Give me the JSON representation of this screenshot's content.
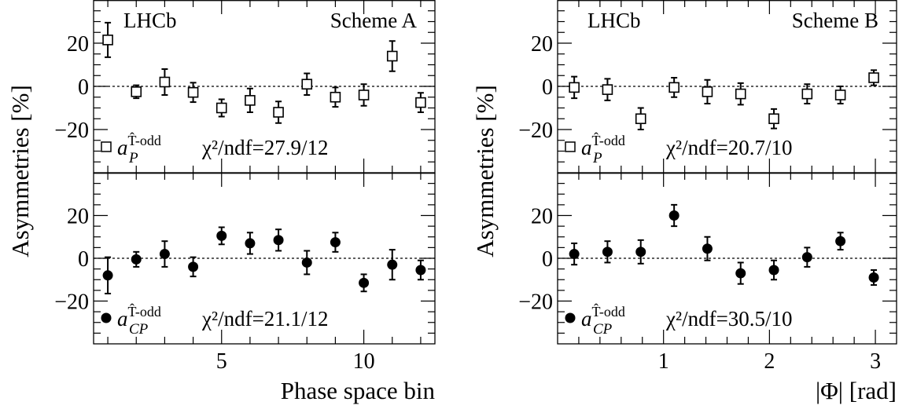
{
  "ylabel": "Asymmetries [%]",
  "chart_data": [
    {
      "type": "scatter",
      "scheme": "Scheme A",
      "experiment": "LHCb",
      "xlabel": "Phase space bin",
      "xlim": [
        0.5,
        12.5
      ],
      "xticks": [
        5,
        10
      ],
      "ylim": [
        -40,
        40
      ],
      "yticks": [
        -20,
        0,
        20
      ],
      "series": [
        {
          "name": "a_P^{T̂-odd}",
          "marker": "open-square",
          "chi2_text": "χ²/ndf=27.9/12",
          "x": [
            1,
            2,
            3,
            4,
            5,
            6,
            7,
            8,
            9,
            10,
            11,
            12
          ],
          "y": [
            21.5,
            -2.5,
            2.0,
            -2.8,
            -10.0,
            -6.5,
            -12.0,
            1.0,
            -5.0,
            -4.0,
            14.0,
            -7.5
          ],
          "err": [
            8.0,
            3.0,
            6.0,
            4.5,
            4.0,
            5.5,
            5.0,
            5.0,
            4.5,
            5.0,
            7.0,
            4.5
          ]
        },
        {
          "name": "a_CP^{T̂-odd}",
          "marker": "filled-circle",
          "chi2_text": "χ²/ndf=21.1/12",
          "x": [
            1,
            2,
            3,
            4,
            5,
            6,
            7,
            8,
            9,
            10,
            11,
            12
          ],
          "y": [
            -8.0,
            -0.5,
            2.0,
            -4.0,
            10.5,
            7.0,
            8.5,
            -2.0,
            7.5,
            -11.5,
            -3.0,
            -5.5
          ],
          "err": [
            8.5,
            3.5,
            6.0,
            4.5,
            4.0,
            5.0,
            5.0,
            5.5,
            4.5,
            4.0,
            7.0,
            4.5
          ]
        }
      ]
    },
    {
      "type": "scatter",
      "scheme": "Scheme B",
      "experiment": "LHCb",
      "xlabel": "|Φ| [rad]",
      "xlim": [
        0,
        3.2
      ],
      "xticks": [
        1,
        2,
        3
      ],
      "ylim": [
        -40,
        40
      ],
      "yticks": [
        -20,
        0,
        20
      ],
      "series": [
        {
          "name": "a_P^{T̂-odd}",
          "marker": "open-square",
          "chi2_text": "χ²/ndf=20.7/10",
          "x": [
            0.157,
            0.471,
            0.785,
            1.1,
            1.414,
            1.728,
            2.042,
            2.356,
            2.67,
            2.985
          ],
          "y": [
            -0.5,
            -1.5,
            -15.0,
            -0.5,
            -2.5,
            -3.5,
            -15.0,
            -3.5,
            -4.0,
            4.0
          ],
          "err": [
            5.0,
            5.0,
            5.0,
            4.5,
            5.5,
            5.0,
            4.5,
            4.5,
            4.0,
            3.5
          ]
        },
        {
          "name": "a_CP^{T̂-odd}",
          "marker": "filled-circle",
          "chi2_text": "χ²/ndf=30.5/10",
          "x": [
            0.157,
            0.471,
            0.785,
            1.1,
            1.414,
            1.728,
            2.042,
            2.356,
            2.67,
            2.985
          ],
          "y": [
            2.0,
            3.0,
            3.0,
            20.0,
            4.5,
            -7.0,
            -5.5,
            0.5,
            8.0,
            -9.0
          ],
          "err": [
            5.0,
            5.0,
            5.5,
            5.0,
            5.5,
            5.0,
            4.5,
            4.5,
            4.0,
            3.5
          ]
        }
      ]
    }
  ]
}
